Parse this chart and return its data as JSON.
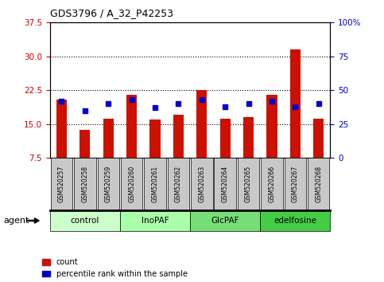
{
  "title": "GDS3796 / A_32_P42253",
  "samples": [
    "GSM520257",
    "GSM520258",
    "GSM520259",
    "GSM520260",
    "GSM520261",
    "GSM520262",
    "GSM520263",
    "GSM520264",
    "GSM520265",
    "GSM520266",
    "GSM520267",
    "GSM520268"
  ],
  "red_values": [
    20.5,
    13.8,
    16.2,
    21.5,
    16.0,
    17.0,
    22.5,
    16.2,
    16.5,
    21.5,
    31.5,
    16.2
  ],
  "blue_values_pct": [
    42,
    35,
    40,
    43,
    37,
    40,
    43,
    38,
    40,
    42,
    38,
    40
  ],
  "groups": [
    {
      "label": "control",
      "start": 0,
      "end": 2,
      "color": "#ccffcc"
    },
    {
      "label": "InoPAF",
      "start": 3,
      "end": 5,
      "color": "#aaffaa"
    },
    {
      "label": "GlcPAF",
      "start": 6,
      "end": 8,
      "color": "#77dd77"
    },
    {
      "label": "edelfosine",
      "start": 9,
      "end": 11,
      "color": "#44cc44"
    }
  ],
  "ylim_left": [
    7.5,
    37.5
  ],
  "ylim_right": [
    0,
    100
  ],
  "yticks_left": [
    7.5,
    15.0,
    22.5,
    30.0,
    37.5
  ],
  "yticks_right": [
    0,
    25,
    50,
    75,
    100
  ],
  "left_color": "#cc0000",
  "right_color": "#0000cc",
  "bar_color": "#cc1100",
  "dot_color": "#0000cc",
  "tick_box_color": "#c8c8c8",
  "bar_width": 0.45,
  "agent_label": "agent",
  "legend_labels": [
    "count",
    "percentile rank within the sample"
  ]
}
